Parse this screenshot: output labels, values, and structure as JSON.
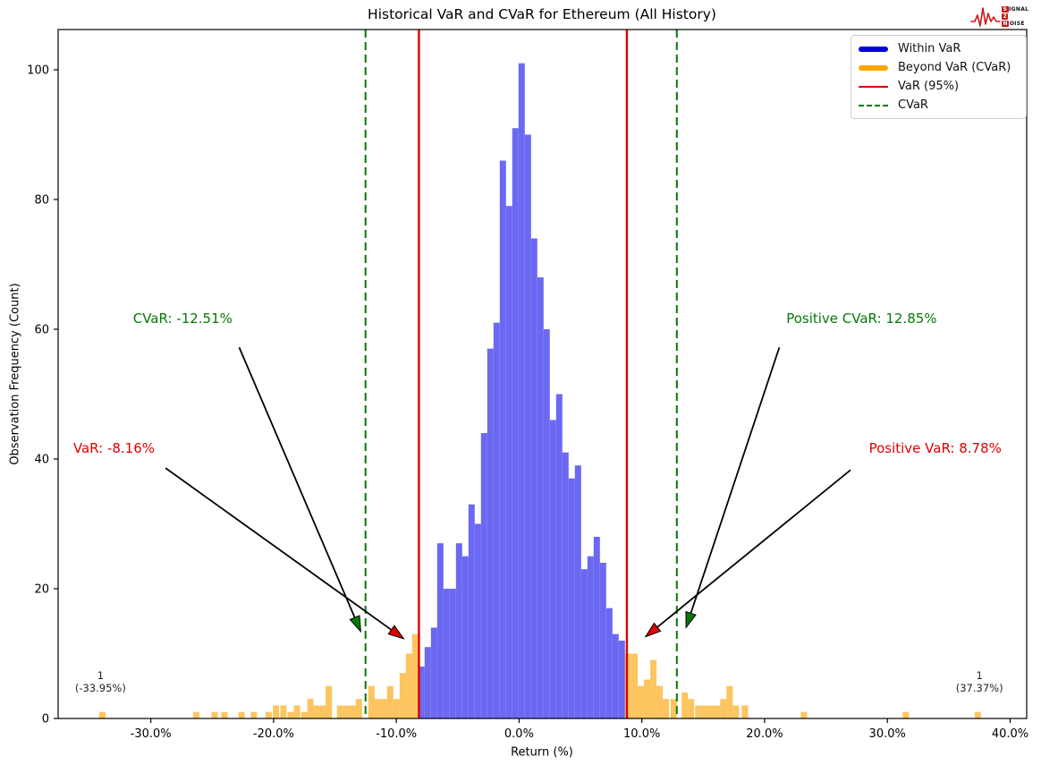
{
  "title": "Historical VaR and CVaR for Ethereum (All History)",
  "logo": {
    "wave_color": "#c61a1a",
    "rows": [
      {
        "boxed": "S",
        "rest": "IGNAL"
      },
      {
        "boxed": "2",
        "rest": ""
      },
      {
        "boxed": "N",
        "rest": "OISE"
      }
    ]
  },
  "legend": {
    "items": [
      {
        "label": "Within VaR",
        "color": "#0000dd",
        "style": "thick"
      },
      {
        "label": "Beyond VaR (CVaR)",
        "color": "#ffa500",
        "style": "thick"
      },
      {
        "label": "VaR (95%)",
        "color": "#dd0000",
        "style": "line"
      },
      {
        "label": "CVaR",
        "color": "#077807",
        "style": "dashed"
      }
    ]
  },
  "chart_data": {
    "type": "bar",
    "subtype": "histogram",
    "title": "Historical VaR and CVaR for Ethereum (All History)",
    "xlabel": "Return (%)",
    "ylabel": "Observation Frequency (Count)",
    "xlim": [
      -37.55,
      41.35
    ],
    "ylim": [
      0,
      106.2
    ],
    "grid": false,
    "bin_width_pct": 0.51,
    "x_ticks": [
      {
        "value": -30,
        "label": "-30.0%"
      },
      {
        "value": -20,
        "label": "-20.0%"
      },
      {
        "value": -10,
        "label": "-10.0%"
      },
      {
        "value": 0,
        "label": "0.0%"
      },
      {
        "value": 10,
        "label": "10.0%"
      },
      {
        "value": 20,
        "label": "20.0%"
      },
      {
        "value": 30,
        "label": "30.0%"
      },
      {
        "value": 40,
        "label": "40.0%"
      }
    ],
    "y_ticks": [
      {
        "value": 0,
        "label": "0"
      },
      {
        "value": 20,
        "label": "20"
      },
      {
        "value": 40,
        "label": "40"
      },
      {
        "value": 60,
        "label": "60"
      },
      {
        "value": 80,
        "label": "80"
      },
      {
        "value": 100,
        "label": "100"
      }
    ],
    "colors": {
      "within": "#6b68f2",
      "beyond": "#fdc45f",
      "var_line": "#dd0000",
      "cvar_line": "#077807"
    },
    "var": {
      "negative": -8.16,
      "positive": 8.78
    },
    "cvar": {
      "negative": -12.51,
      "positive": 12.85
    },
    "bars_within": [
      [
        -7.95,
        8
      ],
      [
        -7.44,
        11
      ],
      [
        -6.93,
        14
      ],
      [
        -6.42,
        27
      ],
      [
        -5.91,
        20
      ],
      [
        -5.4,
        20
      ],
      [
        -4.89,
        27
      ],
      [
        -4.38,
        25
      ],
      [
        -3.87,
        33
      ],
      [
        -3.36,
        30
      ],
      [
        -2.85,
        44
      ],
      [
        -2.34,
        57
      ],
      [
        -1.83,
        61
      ],
      [
        -1.32,
        86
      ],
      [
        -0.81,
        79
      ],
      [
        -0.3,
        91
      ],
      [
        0.21,
        101
      ],
      [
        0.72,
        90
      ],
      [
        1.23,
        74
      ],
      [
        1.74,
        68
      ],
      [
        2.25,
        60
      ],
      [
        2.76,
        46
      ],
      [
        3.27,
        50
      ],
      [
        3.78,
        41
      ],
      [
        4.29,
        37
      ],
      [
        4.8,
        39
      ],
      [
        5.31,
        23
      ],
      [
        5.82,
        25
      ],
      [
        6.33,
        28
      ],
      [
        6.84,
        24
      ],
      [
        7.35,
        17
      ],
      [
        7.86,
        13
      ],
      [
        8.37,
        12
      ]
    ],
    "bars_beyond": [
      [
        -33.95,
        1
      ],
      [
        -26.3,
        1
      ],
      [
        -24.8,
        1
      ],
      [
        -24.0,
        1
      ],
      [
        -22.6,
        1
      ],
      [
        -21.6,
        1
      ],
      [
        -20.4,
        1
      ],
      [
        -19.8,
        2
      ],
      [
        -19.2,
        2
      ],
      [
        -18.6,
        1
      ],
      [
        -18.1,
        2
      ],
      [
        -17.5,
        1
      ],
      [
        -17.0,
        3
      ],
      [
        -16.5,
        2
      ],
      [
        -16.0,
        2
      ],
      [
        -15.5,
        5
      ],
      [
        -14.58,
        2
      ],
      [
        -14.07,
        2
      ],
      [
        -13.56,
        2
      ],
      [
        -13.05,
        3
      ],
      [
        -12.03,
        5
      ],
      [
        -11.52,
        3
      ],
      [
        -11.01,
        3
      ],
      [
        -10.5,
        5
      ],
      [
        -9.99,
        3
      ],
      [
        -9.48,
        7
      ],
      [
        -8.97,
        10
      ],
      [
        -8.46,
        13
      ],
      [
        8.9,
        10
      ],
      [
        9.41,
        10
      ],
      [
        9.92,
        5
      ],
      [
        10.43,
        6
      ],
      [
        10.94,
        9
      ],
      [
        11.45,
        5
      ],
      [
        11.96,
        3
      ],
      [
        12.6,
        3
      ],
      [
        13.5,
        4
      ],
      [
        14.01,
        3
      ],
      [
        14.6,
        2
      ],
      [
        15.11,
        2
      ],
      [
        15.62,
        2
      ],
      [
        16.13,
        2
      ],
      [
        16.64,
        3
      ],
      [
        17.15,
        5
      ],
      [
        17.66,
        2
      ],
      [
        18.4,
        2
      ],
      [
        23.2,
        1
      ],
      [
        31.5,
        1
      ],
      [
        37.37,
        1
      ]
    ],
    "annotations": [
      {
        "text": "CVaR: -12.51%",
        "color": "#077807",
        "text_x": -27.4,
        "text_y": 61.7,
        "arrow": {
          "from": [
            -22.8,
            57.2
          ],
          "to": [
            -12.9,
            13.4
          ],
          "head": "#077807"
        }
      },
      {
        "text": "VaR: -8.16%",
        "color": "#dd0000",
        "text_x": -33.0,
        "text_y": 41.7,
        "arrow": {
          "from": [
            -28.8,
            38.6
          ],
          "to": [
            -9.4,
            12.3
          ],
          "head": "#dd0000"
        }
      },
      {
        "text": "Positive CVaR: 12.85%",
        "color": "#077807",
        "text_x": 27.9,
        "text_y": 61.7,
        "arrow": {
          "from": [
            21.2,
            57.2
          ],
          "to": [
            13.6,
            14.0
          ],
          "head": "#077807"
        }
      },
      {
        "text": "Positive VaR: 8.78%",
        "color": "#dd0000",
        "text_x": 33.9,
        "text_y": 41.7,
        "arrow": {
          "from": [
            27.0,
            38.3
          ],
          "to": [
            10.3,
            12.6
          ],
          "head": "#dd0000"
        }
      }
    ],
    "outlier_labels": [
      {
        "count": "1",
        "ret": "(-33.95%)",
        "x": -34.1,
        "y": 6.1
      },
      {
        "count": "1",
        "ret": "(37.37%)",
        "x": 37.5,
        "y": 6.1
      }
    ]
  }
}
